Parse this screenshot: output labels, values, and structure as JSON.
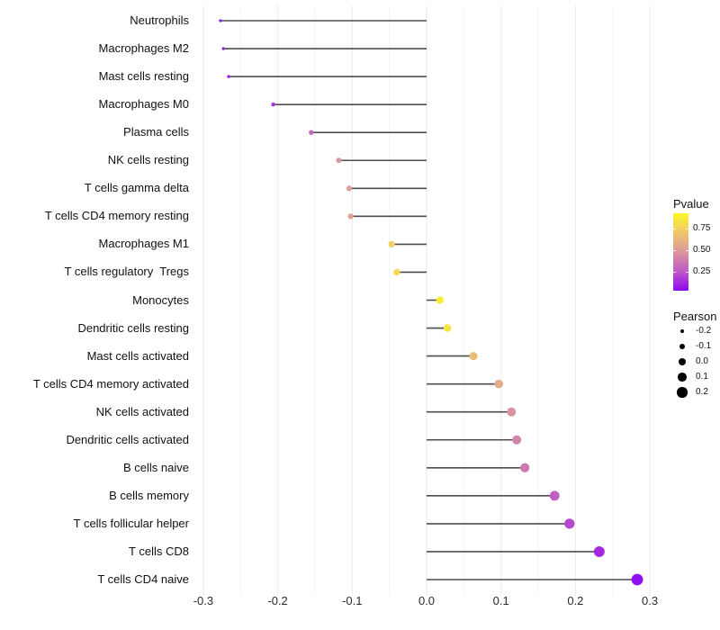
{
  "chart_data": {
    "type": "scatter",
    "variant": "lollipop",
    "title": "",
    "xlabel": "",
    "ylabel": "",
    "x_tick_labels": [
      "-0.3",
      "-0.2",
      "-0.1",
      "0.0",
      "0.1",
      "0.2",
      "0.3"
    ],
    "x_tick_values": [
      -0.3,
      -0.2,
      -0.1,
      0.0,
      0.1,
      0.2,
      0.3
    ],
    "xlim": [
      -0.335,
      0.32
    ],
    "grid": "vertical-only",
    "rows": [
      {
        "label": "Neutrophils",
        "pearson": -0.277,
        "pvalue": 0.08
      },
      {
        "label": "Macrophages M2",
        "pearson": -0.273,
        "pvalue": 0.09
      },
      {
        "label": "Mast cells resting",
        "pearson": -0.266,
        "pvalue": 0.1
      },
      {
        "label": "Macrophages M0",
        "pearson": -0.206,
        "pvalue": 0.16
      },
      {
        "label": "Plasma cells",
        "pearson": -0.155,
        "pvalue": 0.3
      },
      {
        "label": "NK cells resting",
        "pearson": -0.118,
        "pvalue": 0.48
      },
      {
        "label": "T cells gamma delta",
        "pearson": -0.104,
        "pvalue": 0.52
      },
      {
        "label": "T cells CD4 memory resting",
        "pearson": -0.102,
        "pvalue": 0.53
      },
      {
        "label": "Macrophages M1",
        "pearson": -0.047,
        "pvalue": 0.74
      },
      {
        "label": "T cells regulatory  Tregs",
        "pearson": -0.04,
        "pvalue": 0.79
      },
      {
        "label": "Monocytes",
        "pearson": 0.018,
        "pvalue": 0.88
      },
      {
        "label": "Dendritic cells resting",
        "pearson": 0.028,
        "pvalue": 0.84
      },
      {
        "label": "Mast cells activated",
        "pearson": 0.063,
        "pvalue": 0.66
      },
      {
        "label": "T cells CD4 memory activated",
        "pearson": 0.097,
        "pvalue": 0.57
      },
      {
        "label": "NK cells activated",
        "pearson": 0.114,
        "pvalue": 0.47
      },
      {
        "label": "Dendritic cells activated",
        "pearson": 0.121,
        "pvalue": 0.41
      },
      {
        "label": "B cells naive",
        "pearson": 0.132,
        "pvalue": 0.37
      },
      {
        "label": "B cells memory",
        "pearson": 0.172,
        "pvalue": 0.28
      },
      {
        "label": "T cells follicular helper",
        "pearson": 0.192,
        "pvalue": 0.21
      },
      {
        "label": "T cells CD8",
        "pearson": 0.232,
        "pvalue": 0.12
      },
      {
        "label": "T cells CD4 naive",
        "pearson": 0.283,
        "pvalue": 0.05
      }
    ]
  },
  "legends": {
    "pvalue": {
      "title": "Pvalue",
      "range": [
        0.03,
        0.93
      ],
      "ticks": [
        {
          "label": "0.75",
          "value": 0.75
        },
        {
          "label": "0.50",
          "value": 0.5
        },
        {
          "label": "0.25",
          "value": 0.25
        }
      ],
      "gradient_stops": [
        {
          "value": 0.03,
          "color": "#8e07f2"
        },
        {
          "value": 0.25,
          "color": "#bc58c7"
        },
        {
          "value": 0.5,
          "color": "#dd9c9b"
        },
        {
          "value": 0.75,
          "color": "#f2d05f"
        },
        {
          "value": 0.93,
          "color": "#fcf821"
        }
      ]
    },
    "pearson": {
      "title": "Pearson",
      "keys": [
        {
          "label": "-0.2",
          "value": -0.2
        },
        {
          "label": "-0.1",
          "value": -0.1
        },
        {
          "label": "0.0",
          "value": 0.0
        },
        {
          "label": "0.1",
          "value": 0.1
        },
        {
          "label": "0.2",
          "value": 0.2
        }
      ],
      "key_color": "#000000"
    }
  },
  "styles": {
    "background": "#ffffff",
    "stem_color": "#4d4d4d",
    "grid_major_color": "#ebebeb",
    "grid_minor_color": "#f5f5f5",
    "axis_text_color": "#2b2b2b",
    "label_text_color": "#111111"
  }
}
